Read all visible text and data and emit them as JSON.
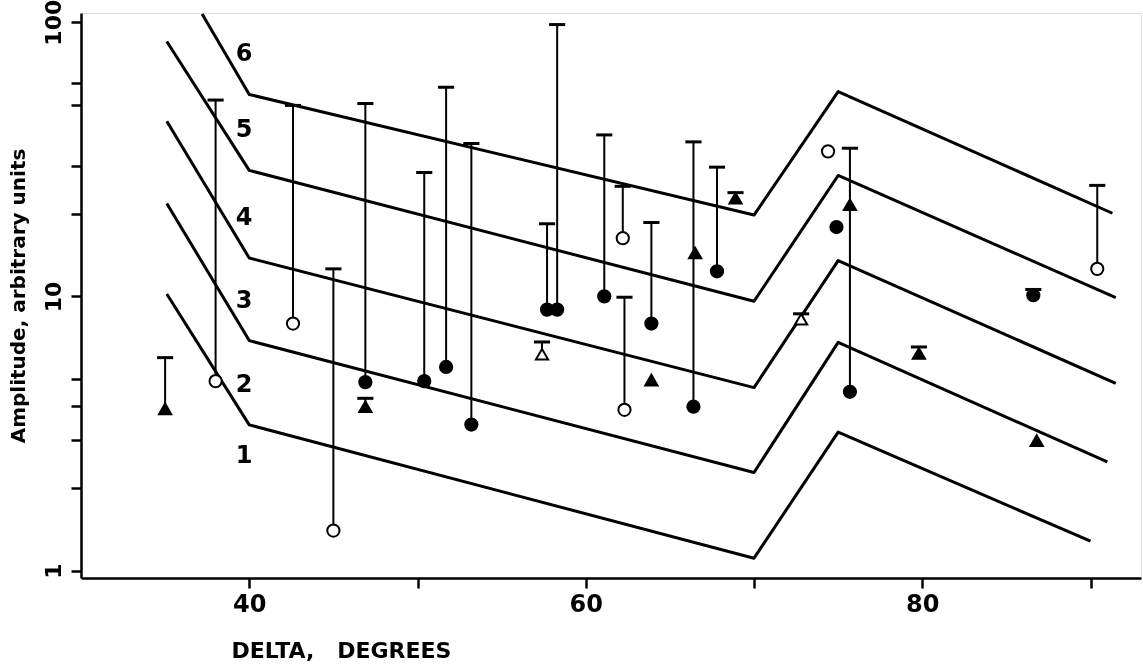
{
  "chart_data": {
    "type": "line",
    "xlabel": "DELTA,   DEGREES",
    "ylabel": "Amplitude, arbitrary units",
    "xlim": [
      30,
      93
    ],
    "xticks": [
      40,
      {
        "value": 50,
        "label": null
      },
      60,
      {
        "value": 70,
        "label": null
      },
      80,
      {
        "value": 90,
        "label": null
      }
    ],
    "ylim": [
      0.94,
      108
    ],
    "yticks": [
      1,
      {
        "value": 2,
        "label": null
      },
      {
        "value": 3,
        "label": null
      },
      {
        "value": 4,
        "label": null
      },
      {
        "value": 5,
        "label": null
      },
      10,
      {
        "value": 20,
        "label": null
      },
      {
        "value": 30,
        "label": null
      },
      {
        "value": 50,
        "label": null
      },
      {
        "value": 60,
        "label": null
      },
      100
    ],
    "log": "y",
    "grid": false,
    "series": [
      {
        "color": "#000000",
        "line_style": "solid",
        "x": [
          35.1,
          40,
          70,
          75,
          90
        ],
        "values": [
          10.2,
          3.4,
          1.11,
          3.2,
          1.28
        ]
      },
      {
        "color": "#000000",
        "line_style": "solid",
        "x": [
          35.1,
          40,
          70,
          75,
          91
        ],
        "values": [
          21.8,
          6.9,
          2.28,
          6.8,
          2.49
        ]
      },
      {
        "color": "#000000",
        "line_style": "solid",
        "x": [
          35.1,
          40,
          70,
          75,
          91.5
        ],
        "values": [
          43.5,
          13.8,
          4.65,
          13.5,
          4.82
        ]
      },
      {
        "color": "#000000",
        "line_style": "solid",
        "x": [
          35.1,
          40,
          70,
          75,
          91.5
        ],
        "values": [
          85,
          28.8,
          9.6,
          27.6,
          9.9
        ]
      },
      {
        "color": "#000000",
        "line_style": "solid",
        "x": [
          37.2,
          40,
          70,
          75,
          91.3
        ],
        "values": [
          107,
          54.5,
          19.8,
          55.8,
          20.1
        ]
      },
      {
        "type": "scatter",
        "color": "#000000",
        "marker": "circle",
        "x": [
          46.9,
          50.4,
          51.7,
          53.2,
          57.7,
          58.3,
          61.1,
          63.9,
          66.4,
          67.8,
          75.7,
          74.9,
          86.6
        ],
        "values": [
          4.87,
          4.91,
          5.53,
          3.41,
          8.95,
          8.95,
          10.0,
          7.96,
          3.96,
          12.35,
          4.49,
          17.9,
          10.1
        ],
        "errors": [
          [
            4.87,
            50.5
          ],
          [
            4.91,
            28.3
          ],
          [
            5.53,
            57.9
          ],
          [
            3.41,
            36.1
          ],
          [
            8.95,
            18.4
          ],
          [
            8.95,
            98
          ],
          [
            10.0,
            38.8
          ],
          [
            7.96,
            18.6
          ],
          [
            3.96,
            36.6
          ],
          [
            12.35,
            29.6
          ],
          [
            4.49,
            34.7
          ],
          null,
          [
            10.1,
            10.6
          ]
        ]
      },
      {
        "type": "scatter",
        "color": "#ffffff",
        "marker": "circle",
        "x": [
          38.0,
          42.6,
          45.0,
          62.2,
          62.3,
          74.4,
          90.4
        ],
        "values": [
          4.91,
          7.96,
          1.4,
          16.3,
          3.86,
          33.8,
          12.6
        ],
        "errors": [
          [
            4.91,
            52
          ],
          [
            7.96,
            49.7
          ],
          [
            1.4,
            12.6
          ],
          [
            16.3,
            25.2
          ],
          [
            3.86,
            9.93
          ],
          null,
          [
            12.6,
            25.4
          ]
        ]
      },
      {
        "type": "scatter",
        "color": "#000000",
        "marker": "triangle",
        "x": [
          35.0,
          46.9,
          63.9,
          66.5,
          68.9,
          75.7,
          79.8,
          86.8
        ],
        "values": [
          3.89,
          3.96,
          4.95,
          14.4,
          22.8,
          21.6,
          6.19,
          2.98
        ],
        "errors": [
          [
            3.89,
            5.98
          ],
          [
            3.96,
            4.25
          ],
          null,
          null,
          [
            22.8,
            23.9
          ],
          null,
          [
            6.19,
            6.54
          ],
          null
        ]
      },
      {
        "type": "scatter",
        "color": "#ffffff",
        "marker": "triangle",
        "x": [
          57.4,
          72.8
        ],
        "values": [
          6.15,
          8.25
        ],
        "errors": [
          [
            6.15,
            6.82
          ],
          [
            8.25,
            8.64
          ]
        ]
      }
    ],
    "annotations": [
      "6",
      "5",
      "4",
      "3",
      "2",
      "1"
    ]
  }
}
